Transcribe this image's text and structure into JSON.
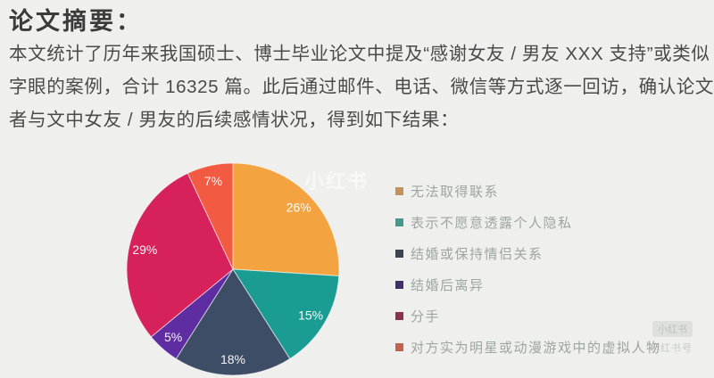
{
  "page": {
    "background": "#EFF0EE"
  },
  "header": {
    "title": "论文摘要："
  },
  "abstract": {
    "lines": [
      "本文统计了历年来我国硕士、博士毕业论文中提及“感谢女友 / 男友 XXX 支持”或类似",
      "字眼的案例，合计 16325 篇。此后通过邮件、电话、微信等方式逐一回访，确认论文作",
      "者与文中女友 / 男友的后续感情状况，得到如下结果："
    ]
  },
  "watermarks": {
    "center": "小红书",
    "corner_badge": "小红书",
    "corner_line": "小红书号"
  },
  "chart_data": {
    "type": "pie",
    "title": "",
    "labels": [
      "无法取得联系",
      "表示不愿意透露个人隐私",
      "结婚或保持情侣关系",
      "结婚后离异",
      "分手",
      "对方实为明星或动漫游戏中的虚拟人物"
    ],
    "values": [
      26,
      15,
      18,
      5,
      29,
      7
    ],
    "value_labels": [
      "26%",
      "15%",
      "18%",
      "5%",
      "29%",
      "7%"
    ],
    "colors": [
      "#F3A440",
      "#1B9C92",
      "#3E4D66",
      "#5D2DA1",
      "#D6215A",
      "#F25A41"
    ],
    "legend_swatch_colors": [
      "#C2925A",
      "#46988D",
      "#3C4450",
      "#42306B",
      "#8E3150",
      "#C3624F"
    ],
    "start_angle_deg": 0,
    "direction": "clockwise",
    "legend_position": "right",
    "label_radius_ratio": 0.85
  }
}
